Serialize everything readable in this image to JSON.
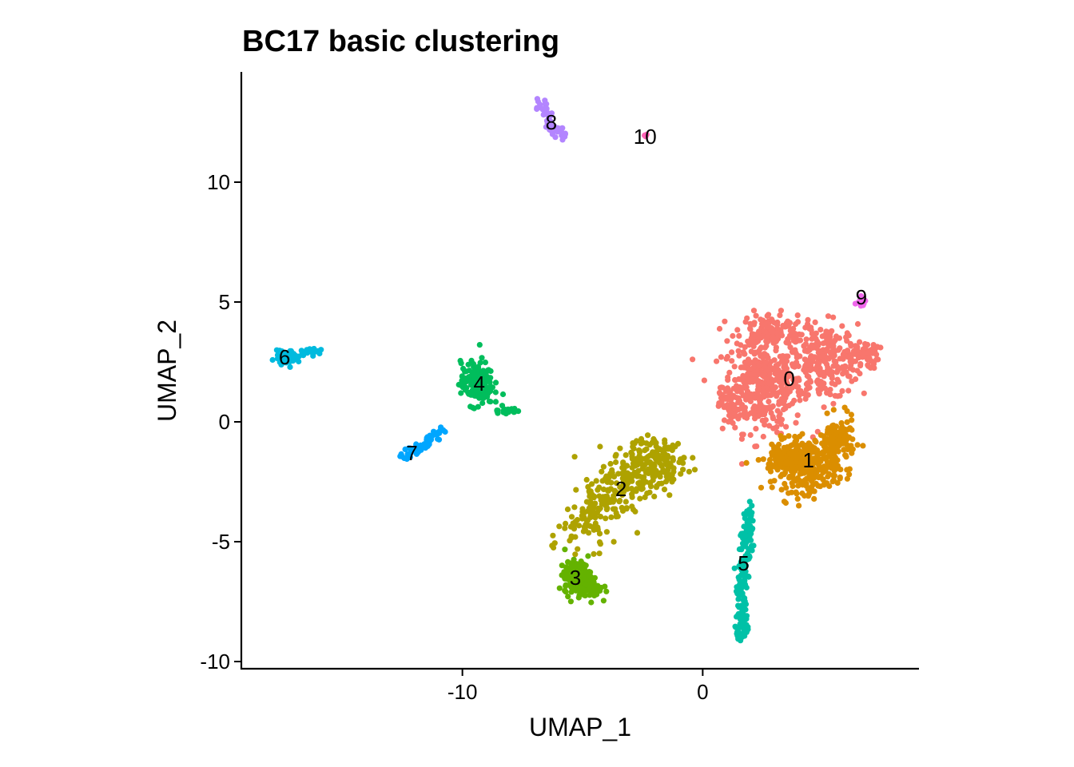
{
  "chart_data": {
    "type": "scatter",
    "title": "BC17 basic clustering",
    "xlabel": "UMAP_1",
    "ylabel": "UMAP_2",
    "xlim": [
      -19.2,
      9.0
    ],
    "ylim": [
      -10.3,
      14.6
    ],
    "x_ticks": [
      -10,
      0
    ],
    "x_tick_labels": [
      "-10",
      "0"
    ],
    "y_ticks": [
      -10,
      -5,
      0,
      5,
      10
    ],
    "y_tick_labels": [
      "-10",
      "-5",
      "0",
      "5",
      "10"
    ],
    "grid": false,
    "legend": "none",
    "clusters": [
      {
        "label": "0",
        "color": "#F8766D",
        "label_pos": [
          3.6,
          1.8
        ]
      },
      {
        "label": "1",
        "color": "#DB8E00",
        "label_pos": [
          4.4,
          -1.6
        ]
      },
      {
        "label": "2",
        "color": "#AEA200",
        "label_pos": [
          -3.4,
          -2.8
        ]
      },
      {
        "label": "3",
        "color": "#64B200",
        "label_pos": [
          -5.3,
          -6.5
        ]
      },
      {
        "label": "4",
        "color": "#00BD5C",
        "label_pos": [
          -9.3,
          1.6
        ]
      },
      {
        "label": "5",
        "color": "#00C1A7",
        "label_pos": [
          1.7,
          -5.9
        ]
      },
      {
        "label": "6",
        "color": "#00BADE",
        "label_pos": [
          -17.4,
          2.7
        ]
      },
      {
        "label": "7",
        "color": "#00A6FF",
        "label_pos": [
          -12.1,
          -1.3
        ]
      },
      {
        "label": "8",
        "color": "#B385FF",
        "label_pos": [
          -6.3,
          12.5
        ]
      },
      {
        "label": "9",
        "color": "#EF67EB",
        "label_pos": [
          6.6,
          5.2
        ]
      },
      {
        "label": "10",
        "color": "#FF63B6",
        "label_pos": [
          -2.4,
          11.9
        ]
      }
    ]
  }
}
